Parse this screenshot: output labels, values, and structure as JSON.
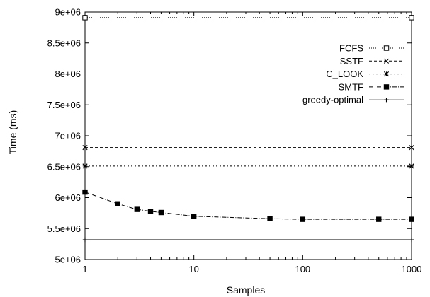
{
  "chart_data": {
    "type": "line",
    "title": "",
    "xlabel": "Samples",
    "ylabel": "Time (ms)",
    "xscale": "log",
    "xlim": [
      1,
      1000
    ],
    "ylim": [
      5000000,
      9000000
    ],
    "xticks": [
      1,
      10,
      100,
      1000
    ],
    "xtick_labels": [
      "1",
      "10",
      "100",
      "1000"
    ],
    "yticks": [
      5000000,
      5500000,
      6000000,
      6500000,
      7000000,
      7500000,
      8000000,
      8500000,
      9000000
    ],
    "ytick_labels": [
      "5e+06",
      "5.5e+06",
      "6e+06",
      "6.5e+06",
      "7e+06",
      "7.5e+06",
      "8e+06",
      "8.5e+06",
      "9e+06"
    ],
    "grid": false,
    "legend_position": "right",
    "series": [
      {
        "name": "FCFS",
        "marker": "square-open",
        "dash": "1,2",
        "x": [
          1,
          1000
        ],
        "y": [
          8910000,
          8910000
        ]
      },
      {
        "name": "SSTF",
        "marker": "x",
        "dash": "4,3",
        "x": [
          1,
          1000
        ],
        "y": [
          6810000,
          6810000
        ]
      },
      {
        "name": "C_LOOK",
        "marker": "asterisk",
        "dash": "2,3",
        "x": [
          1,
          1000
        ],
        "y": [
          6510000,
          6510000
        ]
      },
      {
        "name": "SMTF",
        "marker": "square-filled",
        "dash": "6,2,1,2",
        "x": [
          1,
          2,
          3,
          4,
          5,
          10,
          50,
          100,
          500,
          1000
        ],
        "y": [
          6090000,
          5900000,
          5810000,
          5780000,
          5760000,
          5700000,
          5660000,
          5650000,
          5650000,
          5650000
        ]
      },
      {
        "name": "greedy-optimal",
        "marker": "plus",
        "dash": "",
        "x": [
          1,
          1000
        ],
        "y": [
          5320000,
          5320000
        ]
      }
    ]
  }
}
